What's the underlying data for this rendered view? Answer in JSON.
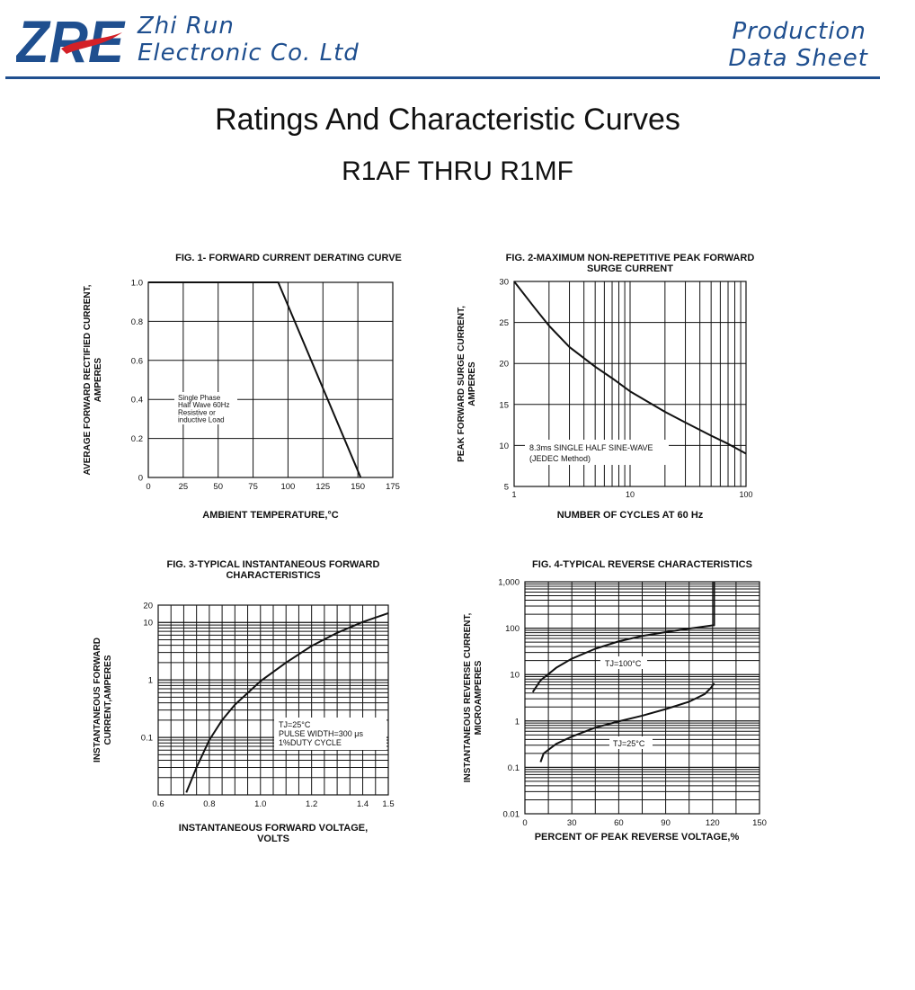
{
  "header": {
    "logo_text": "ZRE",
    "company_line1": "Zhi Run",
    "company_line2": "Electronic Co. Ltd",
    "doc_line1": "Production",
    "doc_line2": "Data Sheet"
  },
  "page": {
    "title": "Ratings And  Characteristic Curves",
    "subtitle": "R1AF THRU R1MF"
  },
  "colors": {
    "brand_blue": "#1f4f8f",
    "brand_red": "#d42027",
    "ink": "#111111"
  },
  "chart_data": [
    {
      "type": "line",
      "title": "FIG. 1- FORWARD CURRENT DERATING CURVE",
      "xlabel": "AMBIENT TEMPERATURE,°C",
      "ylabel": [
        "AVERAGE FORWARD RECTIFIED CURRENT,",
        "AMPERES"
      ],
      "xlim": [
        0,
        175
      ],
      "ylim": [
        0,
        1.0
      ],
      "x_ticks": [
        0,
        25,
        50,
        75,
        100,
        125,
        150,
        175
      ],
      "y_ticks": [
        0,
        0.2,
        0.4,
        0.6,
        0.8,
        1.0
      ],
      "x_tick_labels": [
        "0",
        "25",
        "50",
        "75",
        "100",
        "125",
        "150",
        "175"
      ],
      "y_tick_labels": [
        "0",
        "0.2",
        "0.4",
        "0.6",
        "0.8",
        "1.0"
      ],
      "grid": true,
      "series": [
        {
          "x": [
            0,
            93,
            152
          ],
          "y": [
            1.0,
            1.0,
            0
          ]
        }
      ],
      "annotation": [
        "Single Phase",
        "Half Wave 60Hz",
        "Resistive or",
        "inductive Load"
      ]
    },
    {
      "type": "line",
      "title": [
        "FIG. 2-MAXIMUM NON-REPETITIVE PEAK FORWARD",
        "SURGE CURRENT"
      ],
      "xlabel": "NUMBER OF CYCLES AT 60 Hz",
      "ylabel": [
        "PEAK  FORWARD SURGE CURRENT,",
        "AMPERES"
      ],
      "xscale": "log",
      "xlim": [
        1,
        100
      ],
      "ylim": [
        5,
        30
      ],
      "x_tick_labels": [
        "1",
        "10",
        "100"
      ],
      "y_ticks": [
        5,
        10,
        15,
        20,
        25,
        30
      ],
      "y_tick_labels": [
        "5",
        "10",
        "15",
        "20",
        "25",
        "30"
      ],
      "grid": true,
      "series": [
        {
          "x": [
            1,
            1.5,
            2,
            3,
            5,
            7,
            10,
            20,
            30,
            50,
            70,
            100
          ],
          "y": [
            30,
            26.8,
            24.6,
            22.0,
            19.6,
            18.2,
            16.6,
            14.1,
            12.8,
            11.2,
            10.2,
            9.0
          ]
        }
      ],
      "annotation": [
        "8.3ms SINGLE HALF SINE-WAVE",
        "(JEDEC Method)"
      ]
    },
    {
      "type": "line",
      "title": [
        "FIG. 3-TYPICAL INSTANTANEOUS FORWARD",
        "CHARACTERISTICS"
      ],
      "xlabel": [
        "INSTANTANEOUS FORWARD VOLTAGE,",
        "VOLTS"
      ],
      "ylabel": [
        "INSTANTANEOUS FORWARD",
        "CURRENT,AMPERES"
      ],
      "yscale": "log",
      "xlim": [
        0.6,
        1.5
      ],
      "ylim": [
        0.01,
        20
      ],
      "x_ticks": [
        0.6,
        0.8,
        1.0,
        1.2,
        1.4,
        1.5
      ],
      "x_tick_labels": [
        "0.6",
        "0.8",
        "1.0",
        "1.2",
        "1.4",
        "1.5"
      ],
      "y_ticks": [
        0.1,
        1,
        10,
        20
      ],
      "y_tick_labels": [
        "0.1",
        "1",
        "10",
        "20"
      ],
      "grid": true,
      "series": [
        {
          "x": [
            0.71,
            0.75,
            0.8,
            0.85,
            0.9,
            1.0,
            1.1,
            1.2,
            1.3,
            1.4,
            1.5
          ],
          "y": [
            0.011,
            0.03,
            0.09,
            0.2,
            0.37,
            0.95,
            2.0,
            3.9,
            6.6,
            10.2,
            14.5
          ]
        }
      ],
      "annotation": [
        "TJ=25°C",
        "PULSE WIDTH=300 μs",
        "1%DUTY CYCLE"
      ]
    },
    {
      "type": "line",
      "title": "FIG. 4-TYPICAL REVERSE CHARACTERISTICS",
      "xlabel": "PERCENT OF PEAK REVERSE VOLTAGE,%",
      "ylabel": [
        "INSTANTANEOUS REVERSE CURRENT,",
        "MICROAMPERES"
      ],
      "yscale": "log",
      "xlim": [
        0,
        150
      ],
      "ylim": [
        0.01,
        1000
      ],
      "x_ticks": [
        0,
        30,
        60,
        90,
        120,
        150
      ],
      "x_tick_labels": [
        "0",
        "30",
        "60",
        "90",
        "120",
        "150"
      ],
      "y_ticks": [
        0.01,
        0.1,
        1,
        10,
        100,
        1000
      ],
      "y_tick_labels": [
        "0.01",
        "0.1",
        "1",
        "10",
        "100",
        "1,000"
      ],
      "grid": true,
      "series": [
        {
          "name": "TJ=100°C",
          "x": [
            5,
            10,
            20,
            30,
            45,
            60,
            75,
            90,
            105,
            120,
            121,
            121
          ],
          "y": [
            4.2,
            7.5,
            14,
            22,
            36,
            52,
            68,
            82,
            98,
            115,
            115,
            1000
          ]
        },
        {
          "name": "TJ=25°C",
          "x": [
            10,
            12,
            20,
            30,
            45,
            60,
            75,
            90,
            105,
            115,
            119,
            121
          ],
          "y": [
            0.13,
            0.2,
            0.32,
            0.46,
            0.72,
            0.98,
            1.3,
            1.8,
            2.6,
            3.8,
            5.2,
            6.5
          ]
        }
      ]
    }
  ]
}
